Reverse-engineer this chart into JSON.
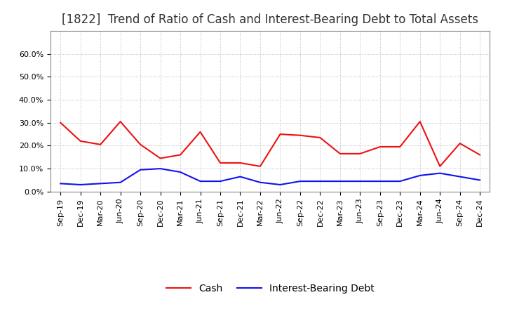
{
  "title": "[1822]  Trend of Ratio of Cash and Interest-Bearing Debt to Total Assets",
  "x_labels": [
    "Sep-19",
    "Dec-19",
    "Mar-20",
    "Jun-20",
    "Sep-20",
    "Dec-20",
    "Mar-21",
    "Jun-21",
    "Sep-21",
    "Dec-21",
    "Mar-22",
    "Jun-22",
    "Sep-22",
    "Dec-22",
    "Mar-23",
    "Jun-23",
    "Sep-23",
    "Dec-23",
    "Mar-24",
    "Jun-24",
    "Sep-24",
    "Dec-24"
  ],
  "cash": [
    0.3,
    0.22,
    0.205,
    0.305,
    0.205,
    0.145,
    0.16,
    0.26,
    0.125,
    0.125,
    0.11,
    0.25,
    0.245,
    0.235,
    0.165,
    0.165,
    0.195,
    0.195,
    0.305,
    0.11,
    0.21,
    0.16
  ],
  "ibd": [
    0.035,
    0.03,
    0.035,
    0.04,
    0.095,
    0.1,
    0.085,
    0.045,
    0.045,
    0.065,
    0.04,
    0.03,
    0.045,
    0.045,
    0.045,
    0.045,
    0.045,
    0.045,
    0.07,
    0.08,
    0.065,
    0.05
  ],
  "cash_color": "#ee1111",
  "ibd_color": "#1111ee",
  "ylim": [
    0.0,
    0.7
  ],
  "yticks": [
    0.0,
    0.1,
    0.2,
    0.3,
    0.4,
    0.5,
    0.6
  ],
  "ytick_labels": [
    "0.0%",
    "10.0%",
    "20.0%",
    "30.0%",
    "40.0%",
    "50.0%",
    "60.0%"
  ],
  "background_color": "#ffffff",
  "plot_bg_color": "#ffffff",
  "grid_color": "#aaaaaa",
  "legend_cash": "Cash",
  "legend_ibd": "Interest-Bearing Debt",
  "title_fontsize": 12,
  "tick_fontsize": 8,
  "legend_fontsize": 10,
  "line_width": 1.5
}
